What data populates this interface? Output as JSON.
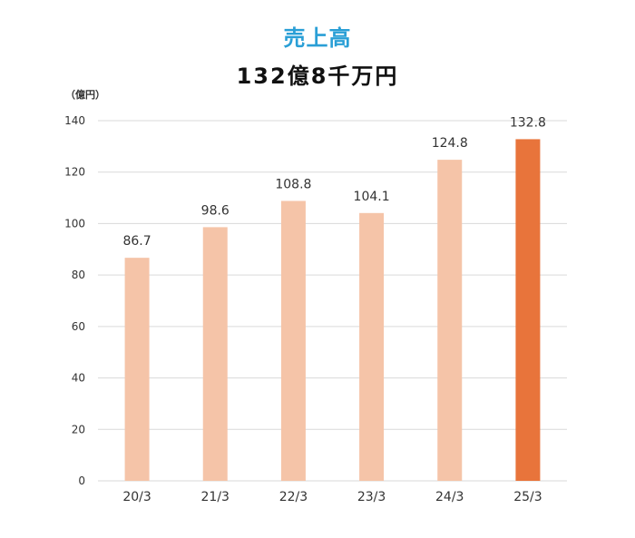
{
  "header": {
    "title": "売上高",
    "subtitle": "132億8千万円"
  },
  "chart_data": {
    "type": "bar",
    "title": "売上高",
    "subtitle": "132億8千万円",
    "unit_label": "（億円）",
    "xlabel": "",
    "ylabel": "",
    "categories": [
      "20/3",
      "21/3",
      "22/3",
      "23/3",
      "24/3",
      "25/3"
    ],
    "values": [
      86.7,
      98.6,
      108.8,
      104.1,
      124.8,
      132.8
    ],
    "value_labels": [
      "86.7",
      "98.6",
      "108.8",
      "104.1",
      "124.8",
      "132.8"
    ],
    "ylim": [
      0,
      140
    ],
    "yticks": [
      0,
      20,
      40,
      60,
      80,
      100,
      120,
      140
    ],
    "grid": true,
    "legend": "none",
    "colors": {
      "bar": "#f5c4a8",
      "highlight_bar": "#e8743b",
      "title": "#2a9fd6",
      "grid": "#d9d9d9"
    },
    "highlight_index": 5
  }
}
